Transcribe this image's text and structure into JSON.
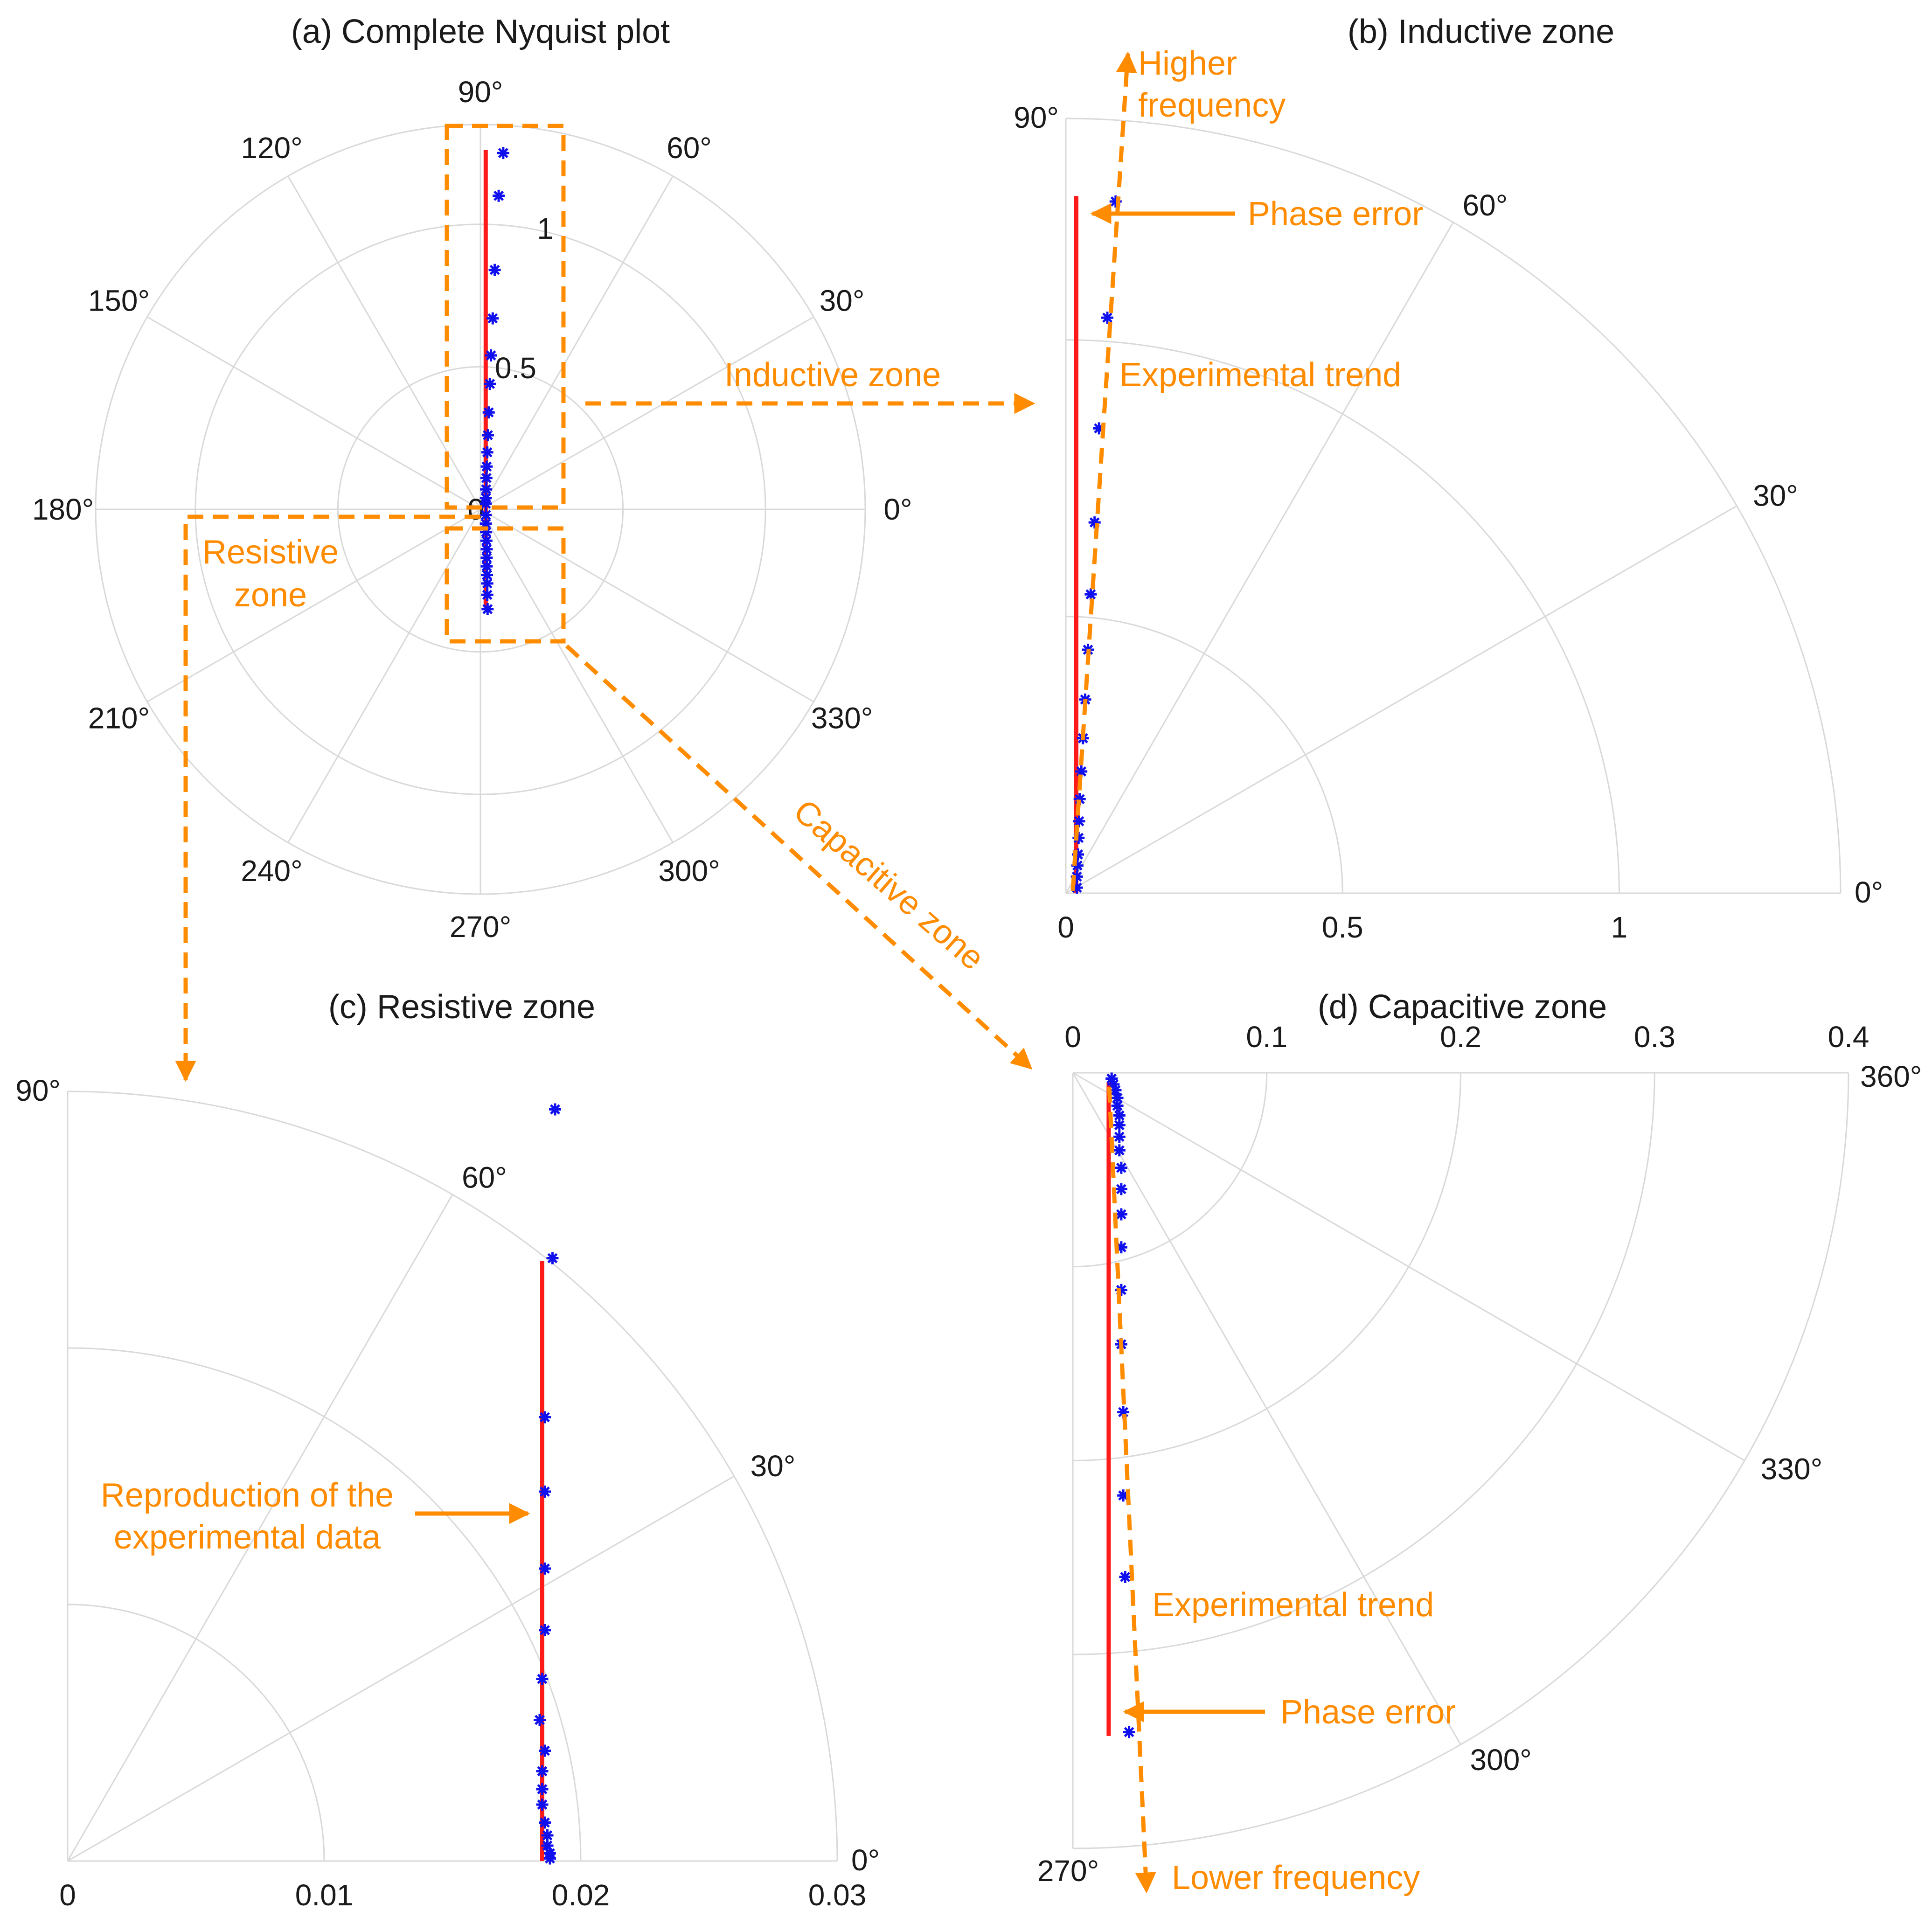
{
  "colors": {
    "fit": "#ff1a1a",
    "data": "#1010ee",
    "annotation": "#ff8c00",
    "grid": "#d9d9d9",
    "text": "#1a1a1a"
  },
  "chart_data": [
    {
      "id": "a",
      "type": "polar-scatter",
      "title": "(a) Complete Nyquist plot",
      "theta_range_deg": [
        0,
        360
      ],
      "r_max": 1.35,
      "r_ticks": [
        0,
        0.5,
        1
      ],
      "r_tick_labels": [
        "0",
        "0.5",
        "1"
      ],
      "theta_ticks_deg": [
        0,
        30,
        60,
        90,
        120,
        150,
        180,
        210,
        240,
        270,
        300,
        330
      ],
      "theta_tick_labels": [
        "0°",
        "30°",
        "60°",
        "90°",
        "120°",
        "150°",
        "180°",
        "210°",
        "240°",
        "270°",
        "300°",
        "330°"
      ],
      "model_line": {
        "x": [
          0.0185,
          0.0185
        ],
        "y": [
          -0.345,
          1.26
        ]
      },
      "experimental": {
        "x": [
          0.08,
          0.064,
          0.05,
          0.043,
          0.037,
          0.033,
          0.029,
          0.026,
          0.024,
          0.022,
          0.021,
          0.02,
          0.019,
          0.019,
          0.019,
          0.019,
          0.02,
          0.021,
          0.022,
          0.022,
          0.022,
          0.023,
          0.024,
          0.024,
          0.025
        ],
        "y": [
          1.25,
          1.1,
          0.84,
          0.67,
          0.54,
          0.44,
          0.34,
          0.26,
          0.2,
          0.15,
          0.11,
          0.07,
          0.04,
          0.02,
          -0.02,
          -0.05,
          -0.08,
          -0.11,
          -0.14,
          -0.17,
          -0.2,
          -0.23,
          -0.26,
          -0.3,
          -0.35
        ]
      }
    },
    {
      "id": "b",
      "type": "polar-scatter",
      "title": "(b) Inductive zone",
      "theta_range_deg": [
        0,
        90
      ],
      "r_max": 1.4,
      "r_ticks": [
        0,
        0.5,
        1
      ],
      "r_tick_labels": [
        "0",
        "0.5",
        "1"
      ],
      "theta_ticks_deg": [
        0,
        30,
        60,
        90
      ],
      "theta_tick_labels": [
        "0°",
        "30°",
        "60°",
        "90°"
      ],
      "model_line": {
        "x": [
          0.019,
          0.019
        ],
        "y": [
          0,
          1.26
        ]
      },
      "experimental": {
        "x": [
          0.09,
          0.075,
          0.06,
          0.052,
          0.045,
          0.04,
          0.035,
          0.031,
          0.028,
          0.025,
          0.024,
          0.023,
          0.022,
          0.021,
          0.02,
          0.02
        ],
        "y": [
          1.25,
          1.04,
          0.84,
          0.67,
          0.54,
          0.44,
          0.35,
          0.28,
          0.22,
          0.17,
          0.13,
          0.1,
          0.07,
          0.05,
          0.03,
          0.01
        ]
      }
    },
    {
      "id": "c",
      "type": "polar-scatter",
      "title": "(c) Resistive zone",
      "theta_range_deg": [
        0,
        90
      ],
      "r_max": 0.03,
      "r_ticks": [
        0,
        0.01,
        0.02,
        0.03
      ],
      "r_tick_labels": [
        "0",
        "0.01",
        "0.02",
        "0.03"
      ],
      "theta_ticks_deg": [
        0,
        30,
        60,
        90
      ],
      "theta_tick_labels": [
        "0°",
        "30°",
        "60°",
        "90°"
      ],
      "model_line": {
        "x": [
          0.0185,
          0.0185
        ],
        "y": [
          0,
          0.0234
        ]
      },
      "experimental": {
        "x": [
          0.019,
          0.0189,
          0.0186,
          0.0186,
          0.0186,
          0.0186,
          0.0185,
          0.0184,
          0.0186,
          0.0185,
          0.0185,
          0.0185,
          0.0186,
          0.0187,
          0.0187,
          0.0188,
          0.0188
        ],
        "y": [
          0.0293,
          0.0235,
          0.0173,
          0.0144,
          0.0114,
          0.009,
          0.0071,
          0.0055,
          0.0043,
          0.0035,
          0.0028,
          0.0022,
          0.0015,
          0.001,
          0.0006,
          0.0003,
          0.0001
        ]
      }
    },
    {
      "id": "d",
      "type": "polar-scatter",
      "title": "(d) Capacitive zone",
      "theta_range_deg": [
        270,
        360
      ],
      "r_max": 0.4,
      "r_ticks": [
        0,
        0.1,
        0.2,
        0.3,
        0.4
      ],
      "r_tick_labels": [
        "0",
        "0.1",
        "0.2",
        "0.3",
        "0.4"
      ],
      "theta_ticks_deg": [
        270,
        300,
        330,
        360
      ],
      "theta_tick_labels": [
        "270°",
        "300°",
        "330°",
        "360°"
      ],
      "model_line": {
        "x": [
          0.0185,
          0.0185
        ],
        "y": [
          -0.342,
          -0.005
        ]
      },
      "experimental": {
        "x": [
          0.029,
          0.027,
          0.026,
          0.026,
          0.025,
          0.025,
          0.025,
          0.025,
          0.025,
          0.025,
          0.024,
          0.024,
          0.024,
          0.024,
          0.023,
          0.023,
          0.022,
          0.021,
          0.02
        ],
        "y": [
          -0.34,
          -0.26,
          -0.218,
          -0.175,
          -0.14,
          -0.112,
          -0.09,
          -0.073,
          -0.06,
          -0.049,
          -0.04,
          -0.033,
          -0.027,
          -0.022,
          -0.017,
          -0.013,
          -0.009,
          -0.006,
          -0.003
        ]
      }
    }
  ],
  "annotations": {
    "a_inductive_zone": "Inductive zone",
    "a_resistive_zone_line1": "Resistive",
    "a_resistive_zone_line2": "zone",
    "a_capacitive_zone": "Capacitive zone",
    "b_higher_frequency_line1": "Higher",
    "b_higher_frequency_line2": "frequency",
    "b_phase_error": "Phase error",
    "b_experimental_trend": "Experimental trend",
    "c_reproduction_line1": "Reproduction of the",
    "c_reproduction_line2": "experimental data",
    "d_experimental_trend": "Experimental trend",
    "d_phase_error": "Phase error",
    "d_lower_frequency": "Lower frequency"
  }
}
